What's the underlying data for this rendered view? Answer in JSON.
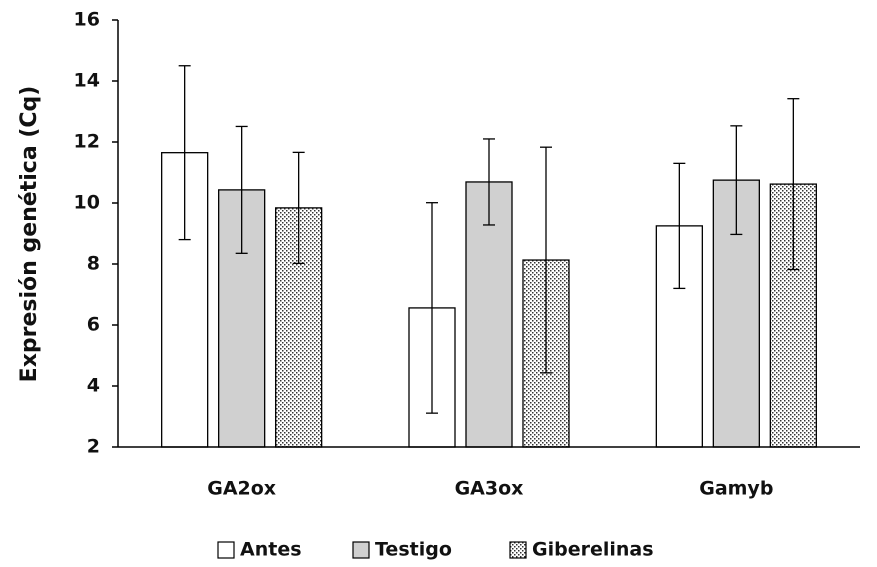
{
  "chart_data": {
    "type": "bar",
    "y_label": "Expresión genética (Cq)",
    "categories": [
      "GA2ox",
      "GA3ox",
      "Gamyb"
    ],
    "series": [
      {
        "name": "Antes",
        "color": "#ffffff",
        "values": [
          11.65,
          6.56,
          9.25
        ],
        "errors": [
          2.85,
          3.45,
          2.05
        ]
      },
      {
        "name": "Testigo",
        "color": "#d0d0d0",
        "values": [
          10.43,
          10.69,
          10.75
        ],
        "errors": [
          2.08,
          1.41,
          1.78
        ]
      },
      {
        "name": "Giberelinas",
        "color": "#ffffff",
        "pattern": "dots",
        "values": [
          9.84,
          8.13,
          10.62
        ],
        "errors": [
          1.82,
          3.7,
          2.8
        ]
      }
    ],
    "ylim": [
      2,
      16
    ],
    "yticks": [
      2,
      4,
      6,
      8,
      10,
      12,
      14,
      16
    ],
    "grid": false,
    "legend": "bottom"
  }
}
